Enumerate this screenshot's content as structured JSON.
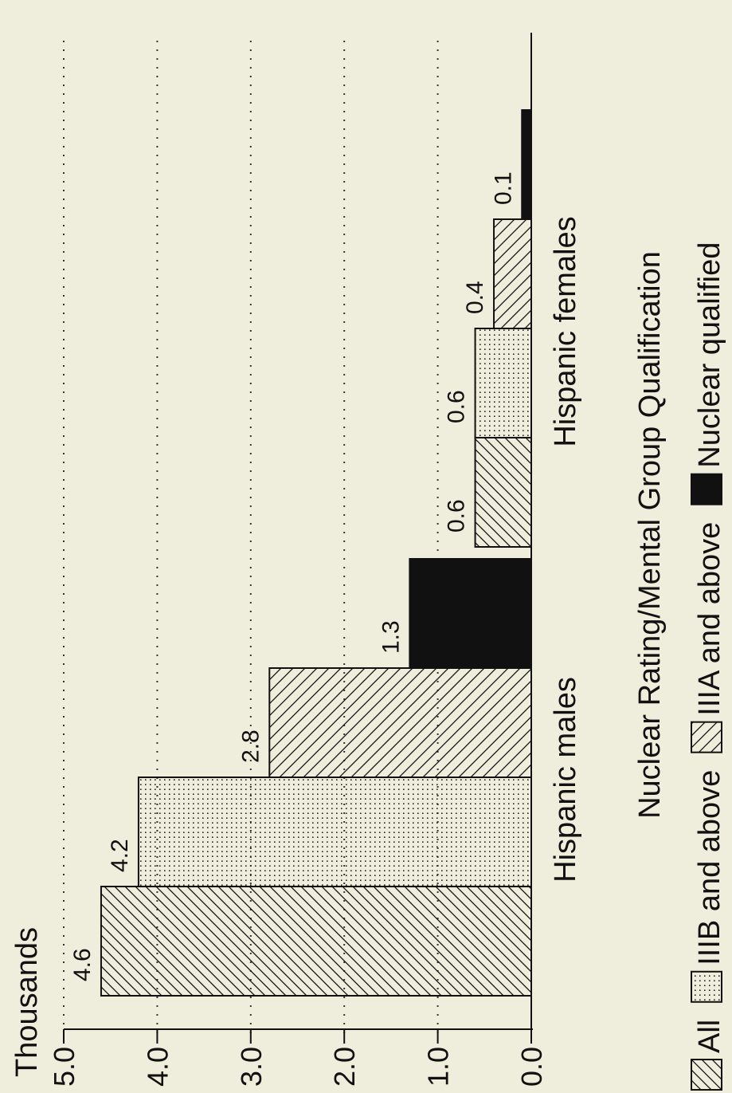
{
  "chart_data": {
    "type": "bar",
    "orientation": "vertical, rotated 90 degrees counter-clockwise on the page",
    "ylabel": "Thousands",
    "xlabel": "Nuclear Rating/Mental Group Qualification",
    "ylim": [
      0,
      5
    ],
    "yticks": [
      "0.0",
      "1.0",
      "2.0",
      "3.0",
      "4.0",
      "5.0"
    ],
    "grid": "dotted horizontal",
    "legend_position": "bottom",
    "categories": [
      "Hispanic males",
      "Hispanic females"
    ],
    "series": [
      {
        "name": "All",
        "pattern": "hatch-forward",
        "values": [
          4.6,
          0.6
        ],
        "labels": [
          "4.6",
          "0.6"
        ]
      },
      {
        "name": "IIIB and above",
        "pattern": "dots",
        "values": [
          4.2,
          0.6
        ],
        "labels": [
          "4.2",
          "0.6"
        ]
      },
      {
        "name": "IIIA and above",
        "pattern": "hatch-back",
        "values": [
          2.8,
          0.4
        ],
        "labels": [
          "2.8",
          "0.4"
        ]
      },
      {
        "name": "Nuclear qualified",
        "pattern": "solid",
        "values": [
          1.3,
          0.1
        ],
        "labels": [
          "1.3",
          "0.1"
        ]
      }
    ]
  }
}
